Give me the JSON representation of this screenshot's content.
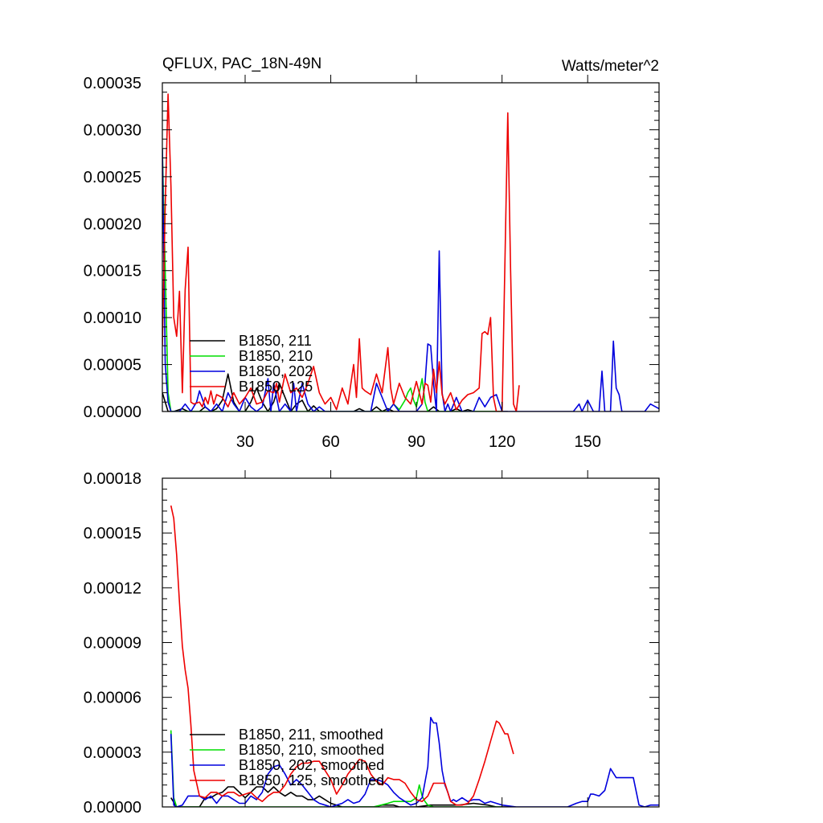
{
  "header": {
    "title": "QFLUX, PAC_18N-49N",
    "units": "Watts/meter^2"
  },
  "chart_data": [
    {
      "type": "line",
      "xlim": [
        1,
        175
      ],
      "ylim": [
        0,
        0.00035
      ],
      "xticks": [
        30,
        60,
        90,
        120,
        150
      ],
      "yticks": [
        0,
        5e-05,
        0.0001,
        0.00015,
        0.0002,
        0.00025,
        0.0003,
        0.00035
      ],
      "ytick_labels": [
        "0.00000",
        "0.00005",
        "0.00010",
        "0.00015",
        "0.00020",
        "0.00025",
        "0.00030",
        "0.00035"
      ],
      "legend_position": "bottom-left",
      "series": [
        {
          "name": "B1850, 211",
          "color": "#000000",
          "x": [
            1,
            3,
            5,
            8,
            10,
            12,
            14,
            16,
            18,
            20,
            22,
            24,
            26,
            28,
            30,
            32,
            34,
            36,
            38,
            40,
            42,
            44,
            46,
            48,
            50,
            52,
            54,
            56,
            58,
            60,
            62,
            64,
            66,
            68,
            70,
            72,
            74,
            76,
            78,
            80,
            82,
            84,
            86,
            88,
            90,
            92,
            94,
            96,
            98,
            100,
            102,
            104,
            106,
            108,
            110,
            112,
            114,
            116,
            118,
            120,
            122
          ],
          "y": [
            2e-05,
            0,
            0,
            3e-06,
            0,
            0,
            0,
            5e-06,
            0,
            3e-06,
            1.2e-05,
            4e-05,
            1e-05,
            0,
            0,
            1e-05,
            2.5e-05,
            1e-05,
            0,
            1e-05,
            3e-05,
            1.5e-05,
            0,
            8e-06,
            1.2e-05,
            0,
            6e-06,
            0,
            0,
            0,
            0,
            0,
            0,
            0,
            3e-06,
            0,
            0,
            5e-06,
            0,
            3e-06,
            0,
            0,
            0,
            0,
            0,
            0,
            0,
            5e-06,
            0,
            0,
            0,
            3e-06,
            0,
            2e-06,
            0,
            0,
            0,
            0,
            0,
            0,
            0
          ]
        },
        {
          "name": "B1850, 210",
          "color": "#00dd00",
          "x": [
            1,
            2,
            3,
            4,
            6,
            10,
            20,
            30,
            40,
            50,
            60,
            70,
            80,
            82,
            84,
            86,
            87,
            88,
            89,
            90,
            91,
            92,
            93,
            94,
            96,
            100,
            110,
            120
          ],
          "y": [
            0.00028,
            0.00015,
            2e-05,
            0,
            0,
            0,
            0,
            0,
            0,
            0,
            0,
            0,
            0,
            8e-06,
            2e-06,
            1.2e-05,
            2e-05,
            2.5e-05,
            1.2e-05,
            5e-06,
            2e-05,
            3.5e-05,
            1e-05,
            0,
            0,
            0,
            0,
            0
          ]
        },
        {
          "name": "B1850, 202",
          "color": "#0000dd",
          "x": [
            1,
            2,
            3,
            4,
            5,
            7,
            9,
            11,
            13,
            14,
            16,
            18,
            20,
            22,
            24,
            26,
            28,
            30,
            32,
            34,
            36,
            38,
            39,
            40,
            42,
            44,
            46,
            47,
            48,
            50,
            52,
            54,
            56,
            58,
            60,
            62,
            64,
            66,
            68,
            70,
            72,
            74,
            76,
            78,
            80,
            82,
            84,
            86,
            88,
            90,
            92,
            93,
            94,
            95,
            96,
            97,
            98,
            99,
            100,
            101,
            102,
            104,
            106,
            108,
            110,
            112,
            114,
            116,
            118,
            120,
            125,
            130,
            140,
            145,
            147,
            148,
            150,
            152,
            154,
            155,
            156,
            158,
            159,
            160,
            161,
            162,
            164,
            166,
            168,
            170,
            172,
            175
          ],
          "y": [
            0.00028,
            5e-05,
            1e-05,
            0,
            0,
            0,
            8e-06,
            0,
            1e-05,
            2.2e-05,
            5e-06,
            0,
            8e-06,
            0,
            2e-05,
            8e-06,
            0,
            1.5e-05,
            5e-06,
            0,
            5e-06,
            3.5e-05,
            0,
            3e-05,
            0,
            8e-06,
            0,
            3e-05,
            0,
            3e-05,
            8e-06,
            0,
            5e-06,
            0,
            0,
            0,
            0,
            0,
            0,
            0,
            0,
            0,
            3e-05,
            1.5e-05,
            0,
            8e-06,
            0,
            0,
            0,
            0,
            8e-06,
            3e-05,
            7.2e-05,
            7e-05,
            3e-05,
            0,
            0.000171,
            2e-05,
            0,
            8e-06,
            0,
            1.5e-05,
            0,
            0,
            0,
            1.5e-05,
            5e-06,
            1.5e-05,
            1.8e-05,
            0,
            0,
            0,
            0,
            0,
            8e-06,
            0,
            1.2e-05,
            0,
            0,
            4.3e-05,
            0,
            0,
            7.5e-05,
            2.5e-05,
            1.8e-05,
            0,
            0,
            0,
            0,
            0,
            8e-06,
            3e-06
          ]
        },
        {
          "name": "B1850, 125",
          "color": "#ee0000",
          "x": [
            1,
            2,
            3,
            4,
            5,
            6,
            7,
            8,
            9,
            10,
            11,
            12,
            14,
            15,
            16,
            17,
            18,
            19,
            20,
            22,
            24,
            26,
            28,
            30,
            32,
            34,
            36,
            38,
            40,
            41,
            42,
            44,
            46,
            48,
            50,
            52,
            54,
            56,
            58,
            60,
            62,
            64,
            66,
            68,
            69,
            70,
            71,
            72,
            74,
            76,
            78,
            80,
            81,
            82,
            84,
            86,
            88,
            90,
            92,
            93,
            94,
            95,
            96,
            97,
            98,
            99,
            100,
            102,
            104,
            106,
            108,
            110,
            112,
            113,
            114,
            115,
            116,
            117,
            118,
            120,
            122,
            123,
            124,
            125,
            126
          ],
          "y": [
            7e-05,
            0.00022,
            0.000338,
            0.00024,
            0.0001,
            8e-05,
            0.000128,
            2e-05,
            0.00013,
            0.000175,
            1e-05,
            8e-06,
            1e-05,
            5e-06,
            1.5e-05,
            8e-06,
            2.2e-05,
            8e-06,
            1.8e-05,
            1.5e-05,
            5e-06,
            2e-05,
            8e-06,
            1.5e-05,
            2.5e-05,
            8e-06,
            1e-05,
            2.2e-05,
            2e-05,
            3e-05,
            1e-05,
            4e-05,
            2e-05,
            2.5e-05,
            1.5e-05,
            3e-05,
            4.8e-05,
            2e-05,
            8e-06,
            1.5e-05,
            2e-06,
            2.5e-05,
            8e-06,
            5e-05,
            1.5e-05,
            7.75e-05,
            2.5e-05,
            2.2e-05,
            1.8e-05,
            4e-05,
            2e-05,
            6.8e-05,
            2.5e-05,
            8e-06,
            3e-05,
            1.5e-05,
            8e-06,
            3.2e-05,
            8e-06,
            3e-05,
            2.8e-05,
            1e-05,
            4.5e-05,
            2e-05,
            5.3e-05,
            1.8e-05,
            8e-06,
            2e-05,
            2e-06,
            1.2e-05,
            1.8e-05,
            2e-05,
            2.5e-05,
            8.3e-05,
            8.5e-05,
            8.2e-05,
            0.0001,
            1.5e-05,
            0,
            0,
            0.000318,
            0.00015,
            8e-06,
            0,
            2.8e-05
          ]
        }
      ]
    },
    {
      "type": "line",
      "xlim": [
        1,
        175
      ],
      "ylim": [
        0,
        0.00018
      ],
      "xticks": [
        30,
        60,
        90,
        120,
        150
      ],
      "yticks": [
        0,
        3e-05,
        6e-05,
        9e-05,
        0.00012,
        0.00015,
        0.00018
      ],
      "ytick_labels": [
        "0.00000",
        "0.00003",
        "0.00006",
        "0.00009",
        "0.00012",
        "0.00015",
        "0.00018"
      ],
      "legend_position": "bottom-left",
      "series": [
        {
          "name": "B1850, 211, smoothed",
          "color": "#000000",
          "x": [
            4,
            6,
            8,
            10,
            12,
            14,
            16,
            18,
            20,
            22,
            24,
            26,
            28,
            30,
            32,
            34,
            36,
            38,
            40,
            42,
            44,
            46,
            48,
            50,
            52,
            54,
            56,
            58,
            60,
            64,
            70,
            75,
            78,
            80,
            82,
            84,
            86,
            90,
            95,
            100,
            105,
            110,
            115,
            118,
            120,
            124
          ],
          "y": [
            5e-06,
            0,
            0,
            0,
            0,
            0,
            5e-06,
            5e-06,
            7e-06,
            8e-06,
            1.1e-05,
            1.1e-05,
            8e-06,
            5e-06,
            8e-06,
            1.1e-05,
            1.1e-05,
            8e-06,
            1.1e-05,
            8e-06,
            6e-06,
            8e-06,
            6e-06,
            6e-06,
            4e-06,
            4e-06,
            6e-06,
            4e-06,
            2e-06,
            0,
            0,
            0,
            1e-06,
            1e-06,
            1e-06,
            0,
            0,
            0,
            1e-06,
            1e-06,
            1e-06,
            2e-06,
            1e-06,
            0,
            0,
            0
          ]
        },
        {
          "name": "B1850, 210, smoothed",
          "color": "#00dd00",
          "x": [
            4,
            5,
            6,
            8,
            20,
            40,
            60,
            75,
            80,
            82,
            84,
            86,
            88,
            90,
            91,
            92,
            93,
            94,
            96,
            100,
            120
          ],
          "y": [
            4.2e-05,
            5e-06,
            0,
            0,
            0,
            0,
            0,
            0,
            2e-06,
            3e-06,
            3e-06,
            3e-06,
            3e-06,
            5e-06,
            1.2e-05,
            6e-06,
            3e-06,
            1e-06,
            0,
            0,
            0
          ]
        },
        {
          "name": "B1850, 202, smoothed",
          "color": "#0000dd",
          "x": [
            4,
            5,
            6,
            8,
            10,
            12,
            14,
            16,
            18,
            20,
            22,
            24,
            26,
            28,
            30,
            32,
            34,
            36,
            38,
            40,
            42,
            44,
            46,
            48,
            50,
            52,
            54,
            56,
            58,
            60,
            62,
            64,
            66,
            68,
            70,
            72,
            74,
            76,
            78,
            80,
            82,
            84,
            86,
            88,
            90,
            92,
            94,
            95,
            96,
            97,
            98,
            99,
            100,
            101,
            102,
            103,
            104,
            106,
            108,
            110,
            112,
            114,
            116,
            118,
            120,
            125,
            130,
            140,
            143,
            146,
            148,
            150,
            151,
            152,
            154,
            156,
            157,
            158,
            160,
            162,
            163,
            164,
            165,
            166,
            168,
            170,
            172,
            175
          ],
          "y": [
            4e-05,
            1e-06,
            0,
            1e-06,
            6e-06,
            6e-06,
            6e-06,
            4e-06,
            6e-06,
            2e-06,
            6e-06,
            6e-06,
            4e-06,
            2e-06,
            2e-06,
            6e-06,
            4e-06,
            8e-06,
            1.8e-05,
            2.2e-05,
            2.3e-05,
            1.8e-05,
            1.2e-05,
            1.5e-05,
            1.2e-05,
            8e-06,
            4e-06,
            2e-06,
            1e-06,
            0,
            1e-06,
            2e-06,
            4e-06,
            2e-06,
            3e-06,
            7e-06,
            1.5e-05,
            1.5e-05,
            1.4e-05,
            1.2e-05,
            8e-06,
            5e-06,
            3e-06,
            1e-06,
            2e-06,
            5e-06,
            2.2e-05,
            4.9e-05,
            4.6e-05,
            4.6e-05,
            3.5e-05,
            2e-05,
            1.2e-05,
            8e-06,
            3e-06,
            4e-06,
            3e-06,
            5e-06,
            3e-06,
            4e-06,
            4e-06,
            2e-06,
            3e-06,
            2e-06,
            1e-06,
            0,
            0,
            0,
            0,
            2e-06,
            3e-06,
            3e-06,
            7e-06,
            7e-06,
            6e-06,
            9e-06,
            1.5e-05,
            2.1e-05,
            1.6e-05,
            1.6e-05,
            1.6e-05,
            1.6e-05,
            1.6e-05,
            1.6e-05,
            1e-06,
            0,
            1e-06,
            1e-06
          ]
        },
        {
          "name": "B1850, 125, smoothed",
          "color": "#ee0000",
          "x": [
            4,
            5,
            6,
            7,
            8,
            9,
            10,
            11,
            12,
            14,
            16,
            18,
            20,
            22,
            24,
            26,
            28,
            30,
            32,
            34,
            36,
            38,
            40,
            42,
            44,
            46,
            48,
            50,
            52,
            54,
            56,
            58,
            60,
            62,
            64,
            66,
            68,
            70,
            72,
            74,
            76,
            78,
            80,
            82,
            84,
            86,
            88,
            90,
            92,
            94,
            96,
            98,
            100,
            102,
            104,
            106,
            108,
            110,
            112,
            114,
            116,
            118,
            119,
            120,
            121,
            122,
            124
          ],
          "y": [
            0.000165,
            0.000158,
            0.000138,
            0.000112,
            8.8e-05,
            7.5e-05,
            6.5e-05,
            4.5e-05,
            2e-05,
            6e-06,
            5e-06,
            8e-06,
            8e-06,
            6e-06,
            8e-06,
            8e-06,
            6e-06,
            7e-06,
            8e-06,
            5e-06,
            3e-06,
            6e-06,
            8e-06,
            8e-06,
            1.2e-05,
            1.8e-05,
            2.2e-05,
            2.4e-05,
            2.4e-05,
            2.5e-05,
            2.5e-05,
            2e-05,
            1.5e-05,
            7e-06,
            1.2e-05,
            1.8e-05,
            2.2e-05,
            2.6e-05,
            2.5e-05,
            1.8e-05,
            1.4e-05,
            1.2e-05,
            1.6e-05,
            1.5e-05,
            1.5e-05,
            1.3e-05,
            8e-06,
            4e-06,
            3e-06,
            6e-06,
            1.3e-05,
            1.3e-05,
            1.3e-05,
            3e-06,
            1e-06,
            1e-06,
            2e-06,
            6e-06,
            1.5e-05,
            2.5e-05,
            3.6e-05,
            4.7e-05,
            4.6e-05,
            4.3e-05,
            4e-05,
            4e-05,
            2.9e-05
          ]
        }
      ]
    }
  ]
}
